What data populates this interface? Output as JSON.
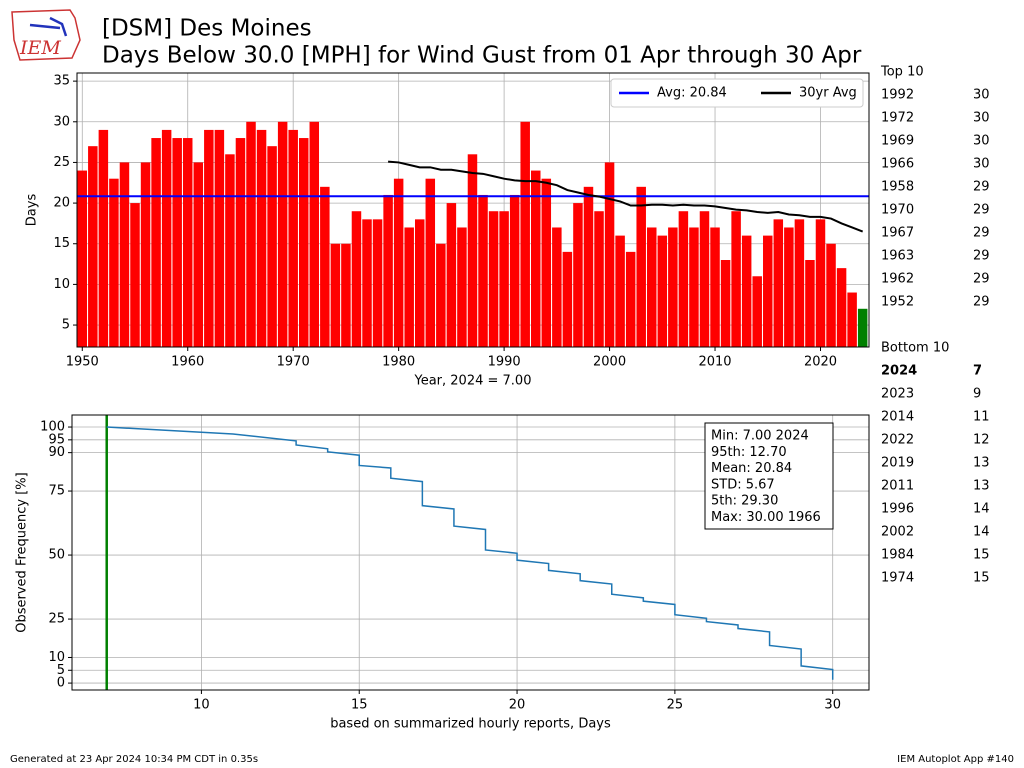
{
  "header": {
    "title_line1": "[DSM] Des Moines",
    "title_line2": "Days Below 30.0 [MPH] for Wind Gust from 01 Apr through 30 Apr",
    "logo": "IEM"
  },
  "chart_data": [
    {
      "type": "bar",
      "xlabel": "Year, 2024 = 7.00",
      "ylabel": "Days",
      "x": [
        1950,
        1951,
        1952,
        1953,
        1954,
        1955,
        1956,
        1957,
        1958,
        1959,
        1960,
        1961,
        1962,
        1963,
        1964,
        1965,
        1966,
        1967,
        1968,
        1969,
        1970,
        1971,
        1972,
        1973,
        1974,
        1975,
        1976,
        1977,
        1978,
        1979,
        1980,
        1981,
        1982,
        1983,
        1984,
        1985,
        1986,
        1987,
        1988,
        1989,
        1990,
        1991,
        1992,
        1993,
        1994,
        1995,
        1996,
        1997,
        1998,
        1999,
        2000,
        2001,
        2002,
        2003,
        2004,
        2005,
        2006,
        2007,
        2008,
        2009,
        2010,
        2011,
        2012,
        2013,
        2014,
        2015,
        2016,
        2017,
        2018,
        2019,
        2020,
        2021,
        2022,
        2023,
        2024
      ],
      "values": [
        24,
        27,
        29,
        23,
        25,
        20,
        25,
        28,
        29,
        28,
        28,
        25,
        29,
        29,
        26,
        28,
        30,
        29,
        27,
        30,
        29,
        28,
        30,
        22,
        15,
        15,
        19,
        18,
        18,
        21,
        23,
        17,
        18,
        23,
        15,
        20,
        17,
        26,
        21,
        19,
        19,
        21,
        30,
        24,
        23,
        17,
        14,
        20,
        22,
        19,
        25,
        16,
        14,
        22,
        17,
        16,
        17,
        19,
        17,
        19,
        17,
        13,
        19,
        16,
        11,
        16,
        18,
        17,
        18,
        13,
        18,
        15,
        12,
        9,
        7
      ],
      "color": "#ff0000",
      "highlight": {
        "x": 2024,
        "color": "#008000"
      },
      "avg_line": {
        "name": "Avg: 20.84",
        "value": 20.84,
        "color": "#0000ff"
      },
      "series": [
        {
          "name": "30yr Avg",
          "color": "#000000",
          "values": [
            null,
            null,
            null,
            null,
            null,
            null,
            null,
            null,
            null,
            null,
            null,
            null,
            null,
            null,
            null,
            null,
            null,
            null,
            null,
            null,
            null,
            null,
            null,
            null,
            null,
            null,
            null,
            null,
            null,
            25.1,
            25.0,
            24.7,
            24.4,
            24.4,
            24.1,
            24.1,
            23.9,
            23.7,
            23.6,
            23.3,
            23.0,
            22.8,
            22.7,
            22.7,
            22.5,
            22.2,
            21.6,
            21.3,
            21.0,
            20.8,
            20.5,
            20.2,
            19.7,
            19.7,
            19.8,
            19.8,
            19.7,
            19.8,
            19.7,
            19.7,
            19.6,
            19.4,
            19.2,
            19.1,
            18.9,
            18.8,
            18.9,
            18.6,
            18.5,
            18.3,
            18.3,
            18.1,
            17.5,
            17.0,
            16.5
          ]
        }
      ],
      "xlim": [
        1949.5,
        2024.6
      ],
      "xticks": [
        1950,
        1960,
        1970,
        1980,
        1990,
        2000,
        2010,
        2020
      ],
      "ylim": [
        2.3,
        36
      ],
      "yticks": [
        5,
        10,
        15,
        20,
        25,
        30,
        35
      ],
      "grid": true,
      "legend": "upper right"
    },
    {
      "type": "line",
      "xlabel": "based on summarized hourly reports, Days",
      "ylabel": "Observed Frequency [%]",
      "series": [
        {
          "color": "#1f77b4",
          "x": [
            7,
            11,
            13,
            13,
            14,
            14,
            15,
            15,
            16,
            16,
            17,
            17,
            18,
            18,
            19,
            19,
            20,
            20,
            21,
            21,
            22,
            22,
            23,
            23,
            24,
            24,
            25,
            25,
            26,
            26,
            27,
            27,
            28,
            28,
            29,
            29,
            30,
            30
          ],
          "values": [
            100,
            97.3,
            94.6,
            93,
            91.5,
            90.3,
            89,
            85,
            84,
            80,
            78.7,
            69.3,
            68,
            61.3,
            60,
            52,
            50.7,
            48,
            46.7,
            44,
            42.7,
            40,
            38.7,
            34.7,
            33.3,
            32,
            30.7,
            26.7,
            25.3,
            24,
            22.7,
            21.3,
            20,
            14.7,
            13.3,
            6.7,
            5.3,
            1.3
          ]
        }
      ],
      "vline": {
        "x": 7,
        "color": "#008000"
      },
      "stats": [
        "Min: 7.00 2024",
        "95th: 12.70",
        "Mean: 20.84",
        "STD: 5.67",
        "5th: 29.30",
        "Max: 30.00 1966"
      ],
      "xlim": [
        5.9,
        31.15
      ],
      "xticks": [
        10,
        15,
        20,
        25,
        30
      ],
      "ylim": [
        -2.7,
        104.7
      ],
      "yticks": [
        0,
        5,
        10,
        25,
        50,
        75,
        90,
        95,
        100
      ],
      "grid": true
    }
  ],
  "ranks": {
    "top_label": "Top 10",
    "top": [
      [
        1992,
        30
      ],
      [
        1972,
        30
      ],
      [
        1969,
        30
      ],
      [
        1966,
        30
      ],
      [
        1958,
        29
      ],
      [
        1970,
        29
      ],
      [
        1967,
        29
      ],
      [
        1963,
        29
      ],
      [
        1962,
        29
      ],
      [
        1952,
        29
      ]
    ],
    "bottom_label": "Bottom 10",
    "bottom": [
      [
        2024,
        7
      ],
      [
        2023,
        9
      ],
      [
        2014,
        11
      ],
      [
        2022,
        12
      ],
      [
        2019,
        13
      ],
      [
        2011,
        13
      ],
      [
        1996,
        14
      ],
      [
        2002,
        14
      ],
      [
        1984,
        15
      ],
      [
        1974,
        15
      ]
    ],
    "bold_year": 2024
  },
  "footer": {
    "left": "Generated at 23 Apr 2024 10:34 PM CDT in 0.35s",
    "right": "IEM Autoplot App #140"
  }
}
